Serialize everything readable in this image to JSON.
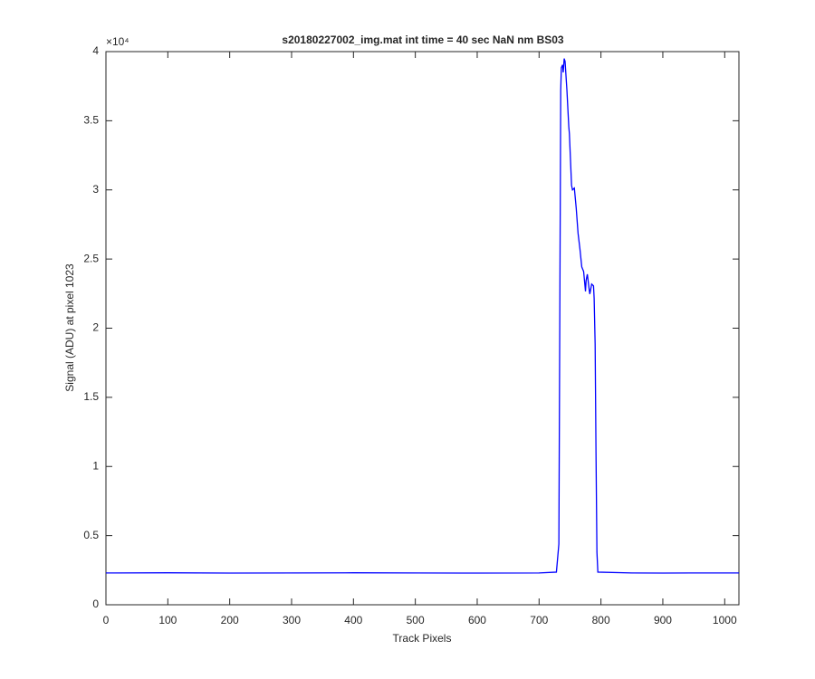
{
  "chart_data": {
    "type": "line",
    "title": "s20180227002_img.mat int time = 40 sec  NaN nm BS03",
    "x_label": "Track Pixels",
    "y_label": "Signal (ADU) at pixel 1023",
    "y_exponent": "×10⁴",
    "xlim": [
      0,
      1023
    ],
    "xticks": [
      0,
      100,
      200,
      300,
      400,
      500,
      600,
      700,
      800,
      900,
      1000
    ],
    "ylim": [
      0,
      40000
    ],
    "yticks": [
      0,
      {
        "value": 5000,
        "label": "0.5"
      },
      {
        "value": 10000,
        "label": "1"
      },
      {
        "value": 15000,
        "label": "1.5"
      },
      {
        "value": 20000,
        "label": "2"
      },
      {
        "value": 25000,
        "label": "2.5"
      },
      {
        "value": 30000,
        "label": "3"
      },
      {
        "value": 35000,
        "label": "3.5"
      },
      {
        "value": 40000,
        "label": "4"
      }
    ],
    "grid": false,
    "series": [
      {
        "color": "#0000ff",
        "x": [
          0,
          100,
          200,
          300,
          400,
          500,
          600,
          700,
          728,
          732,
          735,
          736,
          738,
          739,
          740.6,
          742,
          745,
          748,
          749,
          752.5,
          754,
          757,
          760,
          763,
          766,
          769,
          772,
          775,
          776,
          778,
          781,
          782,
          785,
          788,
          789,
          790.6,
          792,
          793.5,
          795,
          850,
          900,
          950,
          1023
        ],
        "values": [
          2300,
          2310,
          2290,
          2300,
          2310,
          2300,
          2290,
          2300,
          2360,
          4400,
          37200,
          38840,
          39040,
          38500,
          39500,
          39300,
          37200,
          34580,
          34060,
          30330,
          30000,
          30130,
          28690,
          26860,
          25740,
          24430,
          24100,
          22660,
          23450,
          23900,
          22790,
          22470,
          23190,
          23060,
          22140,
          18860,
          11000,
          3800,
          2360,
          2300,
          2290,
          2300,
          2300
        ]
      }
    ]
  }
}
